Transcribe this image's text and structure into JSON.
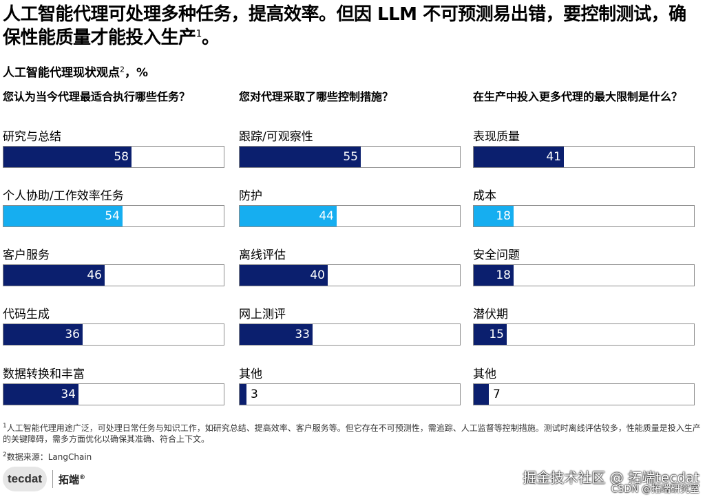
{
  "headline": {
    "text": "人工智能代理可处理多种任务，提高效率。但因 LLM 不可预测易出错，要控制测试，确保性能质量才能投入生产",
    "sup": "1",
    "end": "。"
  },
  "subtitle": {
    "text": "人工智能代理现状观点",
    "sup": "2",
    "unit": "，%"
  },
  "colors": {
    "dark": "#0b1f6e",
    "light": "#16aef0",
    "frame": "#8c8c8c"
  },
  "chart_data": [
    {
      "type": "bar",
      "title": "您认为当今代理最适合执行哪些任务？",
      "categories": [
        "研究与总结",
        "个人协助/工作效率任务",
        "客户服务",
        "代码生成",
        "数据转换和丰富"
      ],
      "values": [
        58,
        54,
        46,
        36,
        34
      ],
      "highlight": [
        false,
        true,
        false,
        false,
        false
      ],
      "xlim": [
        0,
        100
      ]
    },
    {
      "type": "bar",
      "title": "您对代理采取了哪些控制措施？",
      "categories": [
        "跟踪/可观察性",
        "防护",
        "离线评估",
        "网上测评",
        "其他"
      ],
      "values": [
        55,
        44,
        40,
        33,
        3
      ],
      "highlight": [
        false,
        true,
        false,
        false,
        false
      ],
      "xlim": [
        0,
        100
      ]
    },
    {
      "type": "bar",
      "title": "在生产中投入更多代理的最大限制是什么？",
      "categories": [
        "表现质量",
        "成本",
        "安全问题",
        "潜伏期",
        "其他"
      ],
      "values": [
        41,
        18,
        18,
        15,
        7
      ],
      "highlight": [
        false,
        true,
        false,
        false,
        false
      ],
      "xlim": [
        0,
        100
      ]
    }
  ],
  "footnotes": {
    "note1_sup": "1",
    "note1": "人工智能代理用途广泛，可处理日常任务与知识工作，如研究总结、提高效率、客户服务等。但它存在不可预测性，需追踪、人工监督等控制措施。测试时离线评估较多，性能质量是投入生产的关键障碍，需多方面优化以确保其准确、符合上下文。",
    "note2_sup": "2",
    "note2": "数据来源：LangChain"
  },
  "logo": {
    "mark": "tecdat",
    "name": "拓端",
    "reg": "®"
  },
  "watermark": {
    "main": "掘金技术社区 @ 拓端tecdat",
    "small": "CSDN @拓端研究室"
  }
}
